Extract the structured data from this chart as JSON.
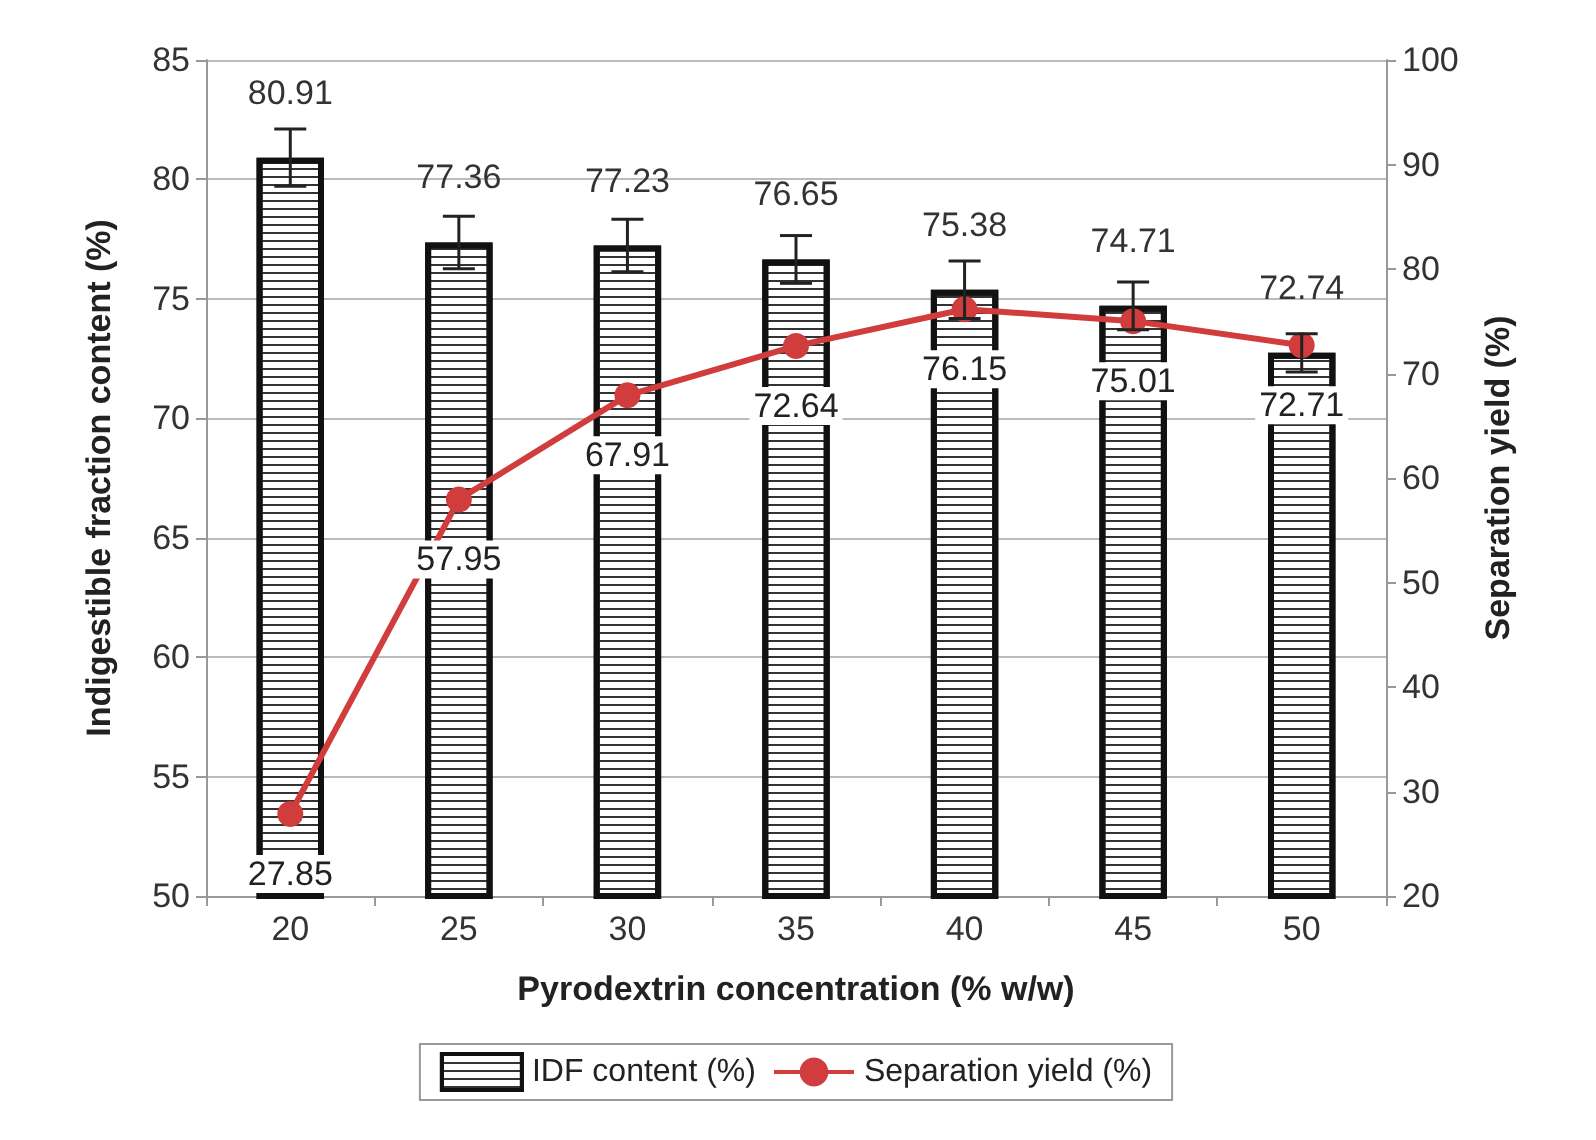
{
  "chart_data": {
    "type": "bar",
    "xlabel": "Pyrodextrin concentration (% w/w)",
    "ylabel": "Indigestible fraction content (%)",
    "y2label": "Separation yield (%)",
    "categories": [
      "20",
      "25",
      "30",
      "35",
      "40",
      "45",
      "50"
    ],
    "series": [
      {
        "name": "IDF content (%)",
        "color": "#ffffff",
        "values": [
          80.91,
          77.36,
          77.23,
          76.65,
          75.38,
          74.71,
          72.74
        ],
        "errors": [
          1.2,
          1.1,
          1.1,
          1.0,
          1.2,
          1.0,
          0.8
        ]
      },
      {
        "name": "Separation yield (%)",
        "type": "line",
        "axis": "y2",
        "color": "#d13c3c",
        "values": [
          27.85,
          57.95,
          67.91,
          72.64,
          76.15,
          75.01,
          72.71
        ]
      }
    ],
    "ylim": [
      50,
      85
    ],
    "yticks": [
      50,
      55,
      60,
      65,
      70,
      75,
      80,
      85
    ],
    "y2lim": [
      20,
      100
    ],
    "y2ticks": [
      20,
      30,
      40,
      50,
      60,
      70,
      80,
      90,
      100
    ],
    "data_labels": true,
    "grid": "y",
    "legend": "bottom",
    "marker": "circle",
    "line_style": "solid"
  }
}
